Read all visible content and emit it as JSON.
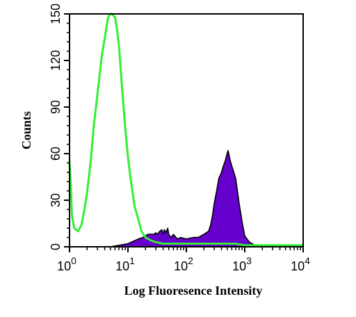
{
  "chart_data": {
    "type": "area",
    "xlabel": "Log Fluoresence Intensity",
    "ylabel": "Counts",
    "x_scale": "log",
    "xlim": [
      1,
      10000
    ],
    "ylim": [
      0,
      150
    ],
    "x_ticks": [
      {
        "value": 1,
        "base": "10",
        "exp": "0"
      },
      {
        "value": 10,
        "base": "10",
        "exp": "1"
      },
      {
        "value": 100,
        "base": "10",
        "exp": "2"
      },
      {
        "value": 1000,
        "base": "10",
        "exp": "3"
      },
      {
        "value": 10000,
        "base": "10",
        "exp": "4"
      }
    ],
    "y_ticks": [
      0,
      30,
      60,
      90,
      120,
      150
    ],
    "grid": false,
    "series": [
      {
        "style": "filled",
        "color": "#6600cc",
        "x": [
          1,
          5,
          10,
          15,
          18,
          20,
          22,
          25,
          28,
          30,
          32,
          35,
          38,
          40,
          42,
          45,
          48,
          50,
          55,
          60,
          70,
          80,
          100,
          130,
          160,
          200,
          240,
          260,
          280,
          300,
          330,
          360,
          400,
          430,
          460,
          490,
          520,
          560,
          600,
          650,
          700,
          800,
          900,
          1000,
          1200,
          1500,
          2000,
          3000,
          10000
        ],
        "y": [
          0,
          0,
          2,
          5,
          6,
          7,
          8,
          8,
          8,
          9,
          8,
          10,
          11,
          8,
          11,
          9,
          12,
          8,
          6,
          8,
          5,
          6,
          5,
          6,
          6,
          8,
          10,
          14,
          20,
          28,
          36,
          44,
          48,
          52,
          55,
          59,
          62,
          56,
          52,
          48,
          44,
          28,
          16,
          7,
          3,
          1,
          0,
          0,
          0
        ]
      },
      {
        "style": "line",
        "color": "#33ee33",
        "x": [
          1,
          1.05,
          1.1,
          1.2,
          1.4,
          1.6,
          1.8,
          2.0,
          2.3,
          2.6,
          3.0,
          3.3,
          3.6,
          4.0,
          4.3,
          4.6,
          5.0,
          5.3,
          5.6,
          6.0,
          6.5,
          7.0,
          7.5,
          8.0,
          8.5,
          9.0,
          10,
          11,
          12,
          13,
          15,
          17,
          20,
          25,
          30,
          40,
          60,
          100,
          200,
          400,
          700,
          1000,
          2000,
          5000,
          10000
        ],
        "y": [
          55,
          40,
          20,
          12,
          10,
          14,
          24,
          35,
          55,
          78,
          98,
          112,
          124,
          134,
          142,
          148,
          150,
          150,
          149,
          148,
          140,
          130,
          115,
          100,
          88,
          76,
          58,
          45,
          35,
          26,
          18,
          10,
          6,
          4,
          3,
          2,
          2,
          2,
          2,
          2,
          2,
          1,
          1,
          1,
          1
        ]
      }
    ]
  }
}
